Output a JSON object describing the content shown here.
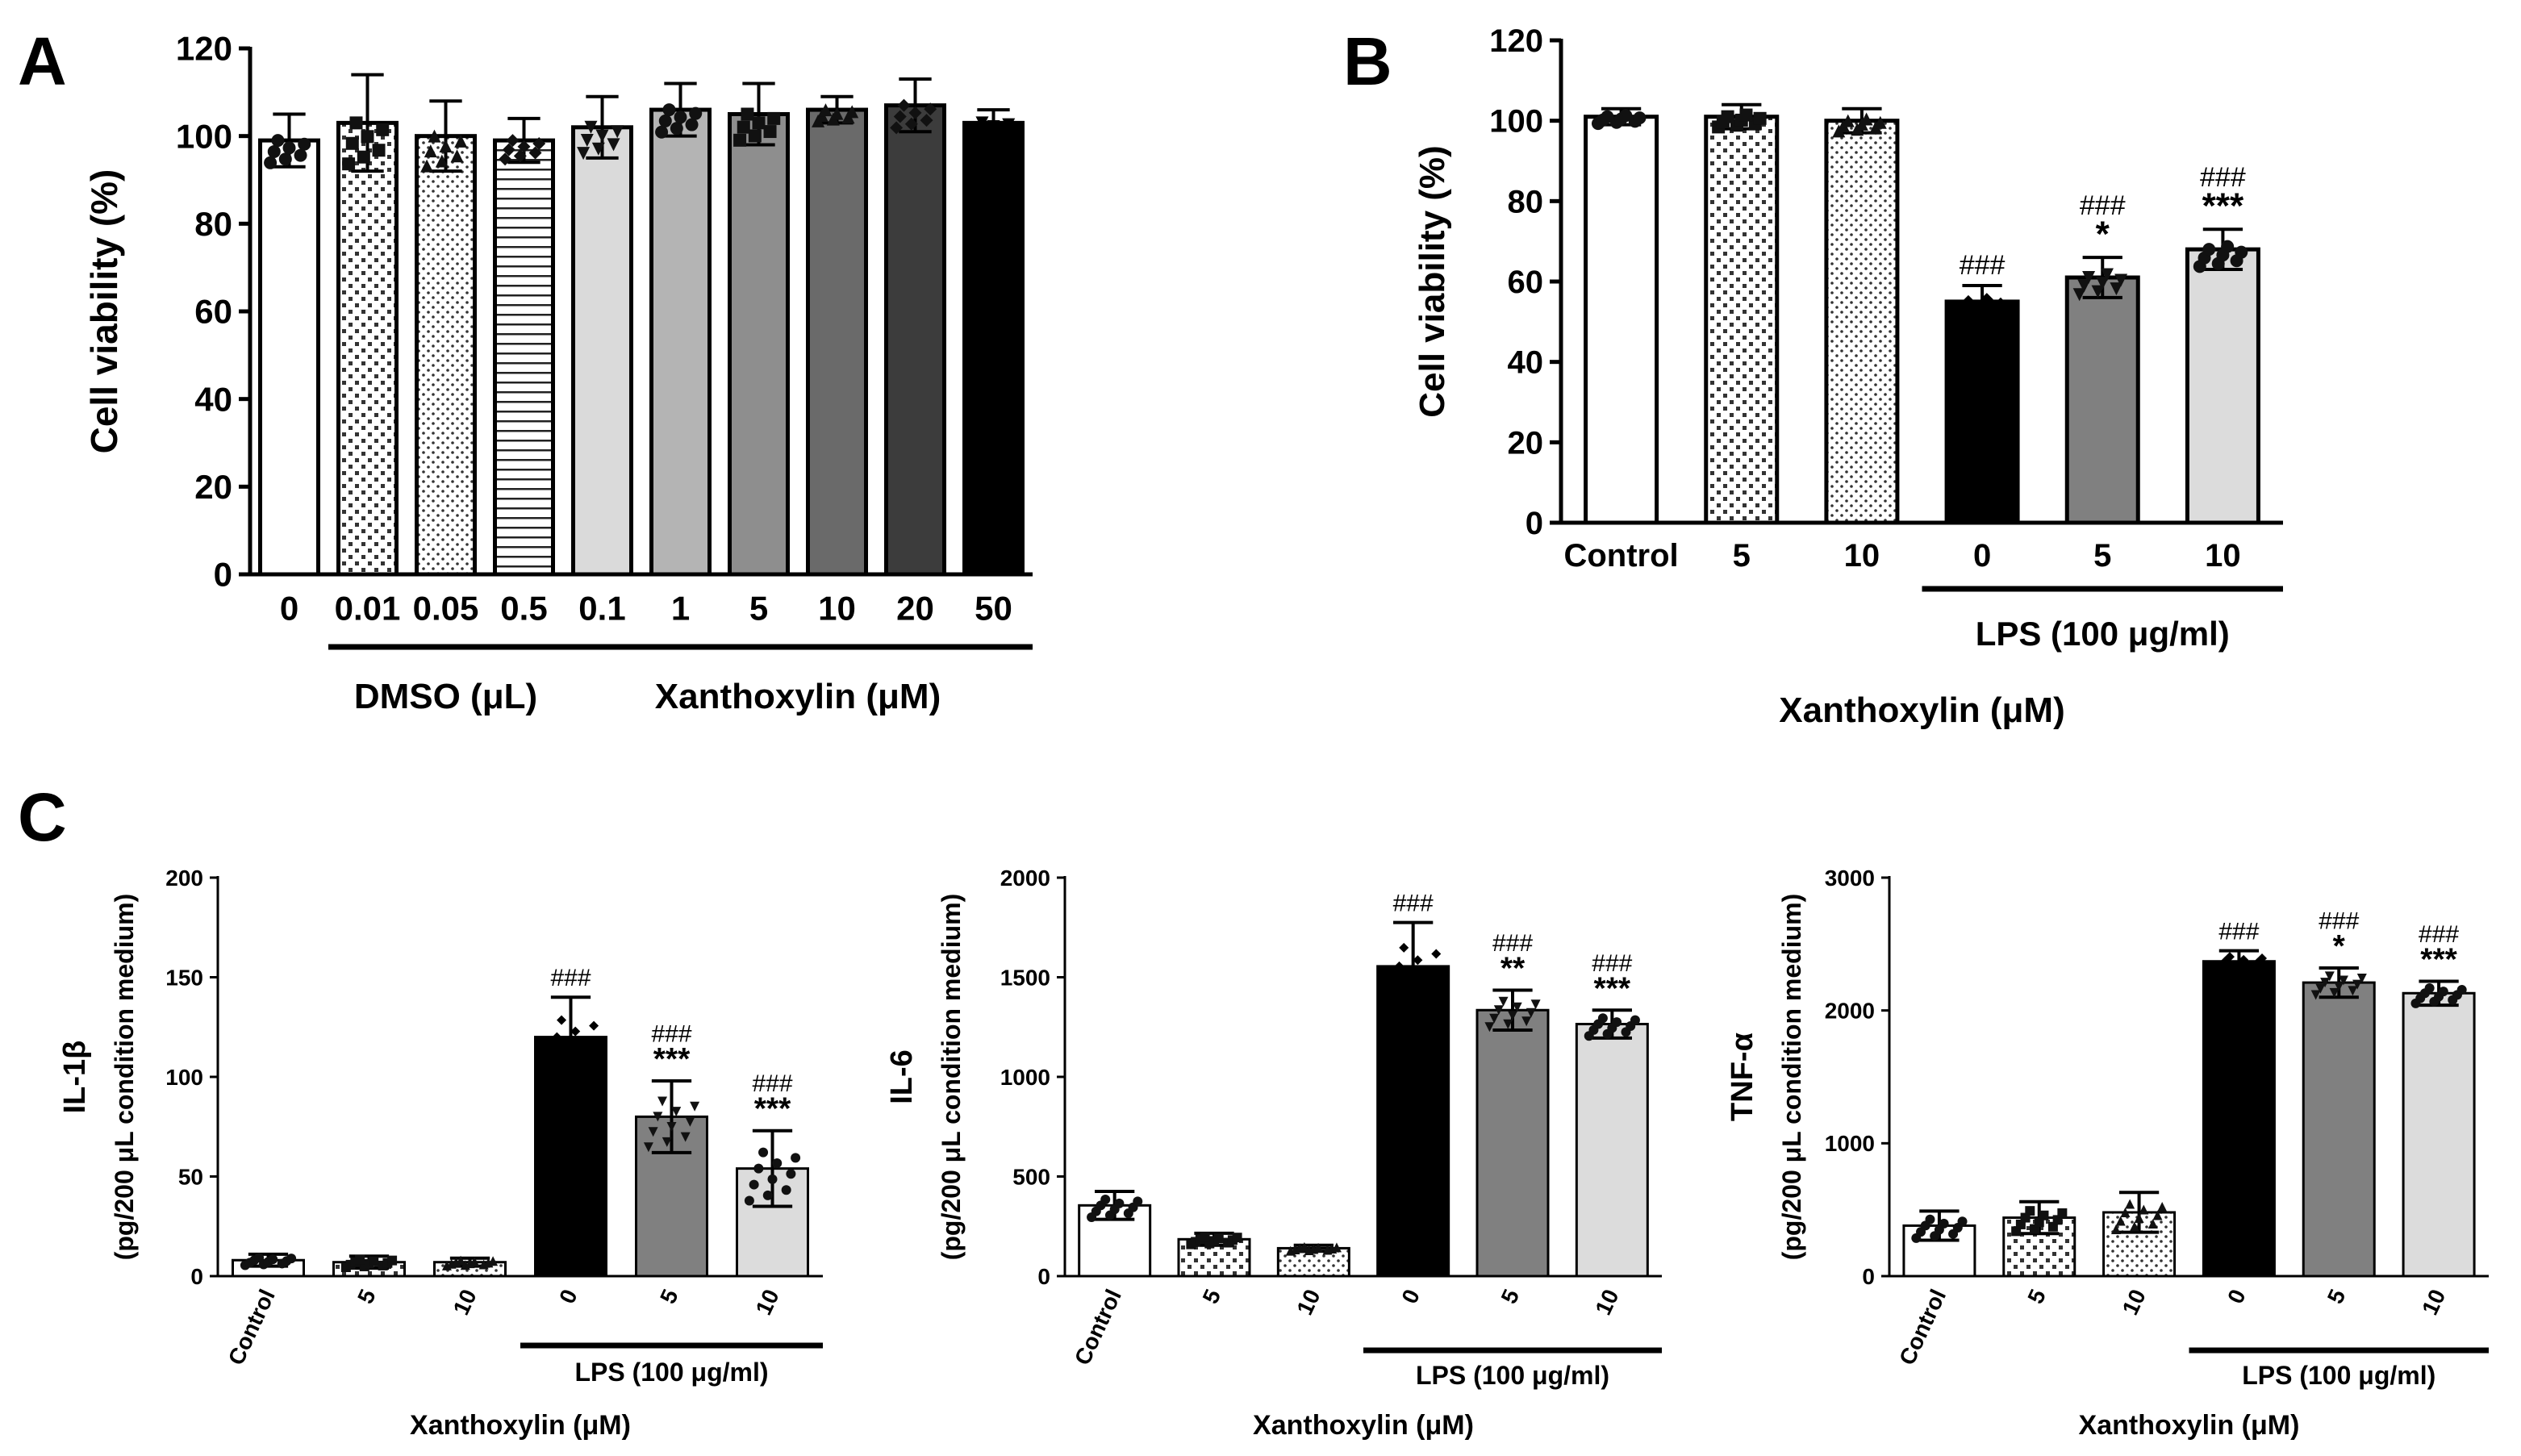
{
  "chart_data": [
    {
      "panel": "A",
      "type": "bar",
      "ylabel": "Cell viability (%)",
      "ylim": [
        0,
        120
      ],
      "yticks": [
        "0",
        "20",
        "40",
        "60",
        "80",
        "100",
        "120"
      ],
      "categories": [
        "0",
        "0.01",
        "0.05",
        "0.5",
        "0.1",
        "1",
        "5",
        "10",
        "20",
        "50"
      ],
      "values": [
        99,
        103,
        100,
        99,
        102,
        106,
        105,
        106,
        107,
        103
      ],
      "errors": [
        6,
        11,
        8,
        5,
        7,
        6,
        7,
        3,
        6,
        3
      ],
      "fills": [
        "#ffffff",
        "pattern:checker",
        "pattern:dots",
        "pattern:hlines",
        "#dadada",
        "#b4b4b4",
        "#8e8e8e",
        "#6a6a6a",
        "#3c3c3c",
        "#000000"
      ],
      "groups": [
        {
          "label": "DMSO (μL)",
          "from": 1,
          "to": 3
        },
        {
          "label": "Xanthoxylin (μM)",
          "from": 4,
          "to": 9
        }
      ],
      "annotations": [
        "",
        "",
        "",
        "",
        "",
        "",
        "",
        "",
        "",
        ""
      ]
    },
    {
      "panel": "B",
      "type": "bar",
      "ylabel": "Cell viability (%)",
      "ylim": [
        0,
        120
      ],
      "yticks": [
        "0",
        "20",
        "40",
        "60",
        "80",
        "100",
        "120"
      ],
      "categories": [
        "Control",
        "5",
        "10",
        "0",
        "5",
        "10"
      ],
      "values": [
        101,
        101,
        100,
        55,
        61,
        68
      ],
      "errors": [
        2,
        3,
        3,
        4,
        5,
        5
      ],
      "fills": [
        "#ffffff",
        "pattern:checker",
        "pattern:dots",
        "#000000",
        "#808080",
        "#dcdcdc"
      ],
      "groups": [
        {
          "label": "LPS (100 μg/ml)",
          "from": 3,
          "to": 5
        }
      ],
      "xlabel": "Xanthoxylin (μM)",
      "annotations": [
        "",
        "",
        "",
        "###",
        "###\n*",
        "###\n***"
      ]
    },
    {
      "panel": "C1",
      "type": "bar",
      "ylabel": "IL-1β",
      "ylabel2": "(pg/200 μL condition medium)",
      "ylim": [
        0,
        200
      ],
      "yticks": [
        "0",
        "50",
        "100",
        "150",
        "200"
      ],
      "categories": [
        "Control",
        "5",
        "10",
        "0",
        "5",
        "10"
      ],
      "values": [
        8,
        7,
        7,
        120,
        80,
        54
      ],
      "errors": [
        3,
        3,
        2,
        20,
        18,
        19
      ],
      "fills": [
        "#ffffff",
        "pattern:checker",
        "pattern:dots",
        "#000000",
        "#808080",
        "#dcdcdc"
      ],
      "groups": [
        {
          "label": "LPS (100 μg/ml)",
          "from": 3,
          "to": 5
        }
      ],
      "xlabel": "Xanthoxylin (μM)",
      "annotations": [
        "",
        "",
        "",
        "###",
        "###\n***",
        "###\n***"
      ]
    },
    {
      "panel": "C2",
      "type": "bar",
      "ylabel": "IL-6",
      "ylabel2": "(pg/200 μL condition medium)",
      "ylim": [
        0,
        2000
      ],
      "yticks": [
        "0",
        "500",
        "1000",
        "1500",
        "2000"
      ],
      "categories": [
        "Control",
        "5",
        "10",
        "0",
        "5",
        "10"
      ],
      "values": [
        355,
        185,
        140,
        1555,
        1335,
        1265
      ],
      "errors": [
        70,
        30,
        15,
        220,
        100,
        70
      ],
      "fills": [
        "#ffffff",
        "pattern:checker",
        "pattern:dots",
        "#000000",
        "#808080",
        "#dcdcdc"
      ],
      "groups": [
        {
          "label": "LPS (100 μg/ml)",
          "from": 3,
          "to": 5
        }
      ],
      "xlabel": "Xanthoxylin (μM)",
      "annotations": [
        "",
        "",
        "",
        "###",
        "###\n**",
        "###\n***"
      ]
    },
    {
      "panel": "C3",
      "type": "bar",
      "ylabel": "TNF-α",
      "ylabel2": "(pg/200 μL condition medium)",
      "ylim": [
        0,
        3000
      ],
      "yticks": [
        "0",
        "1000",
        "2000",
        "3000"
      ],
      "categories": [
        "Control",
        "5",
        "10",
        "0",
        "5",
        "10"
      ],
      "values": [
        380,
        440,
        480,
        2370,
        2210,
        2130
      ],
      "errors": [
        110,
        120,
        150,
        80,
        110,
        90
      ],
      "fills": [
        "#ffffff",
        "pattern:checker",
        "pattern:dots",
        "#000000",
        "#808080",
        "#dcdcdc"
      ],
      "groups": [
        {
          "label": "LPS (100 μg/ml)",
          "from": 3,
          "to": 5
        }
      ],
      "xlabel": "Xanthoxylin (μM)",
      "annotations": [
        "",
        "",
        "",
        "###",
        "###\n*",
        "###\n***"
      ]
    }
  ],
  "panel_letters": {
    "A": "A",
    "B": "B",
    "C": "C"
  }
}
